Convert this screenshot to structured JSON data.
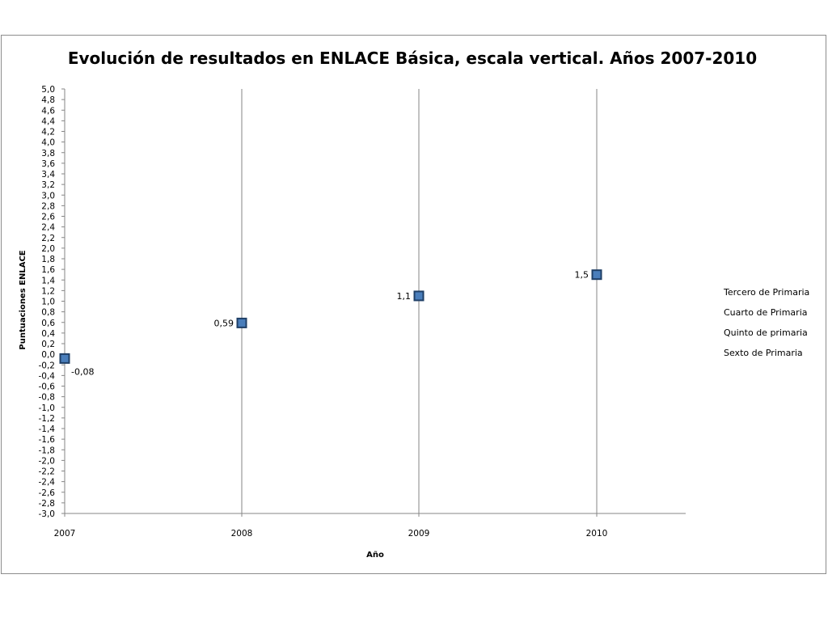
{
  "chart_data": {
    "type": "scatter",
    "title": "Evolución de resultados en ENLACE Básica, escala vertical. Años 2007-2010",
    "xlabel": "Año",
    "ylabel": "Puntuaciones ENLACE",
    "x": [
      2007,
      2008,
      2009,
      2010
    ],
    "x_tick_labels": [
      "2007",
      "2008",
      "2009",
      "2010"
    ],
    "ylim": [
      -3.0,
      5.0
    ],
    "y_step": 0.2,
    "y_decimal_separator": ",",
    "grid": "vertical major gridlines at each year",
    "points": [
      {
        "x": 2007,
        "y": -0.08,
        "label": "-0,08"
      },
      {
        "x": 2008,
        "y": 0.59,
        "label": "0,59"
      },
      {
        "x": 2009,
        "y": 1.1,
        "label": "1,1"
      },
      {
        "x": 2010,
        "y": 1.5,
        "label": "1,5"
      }
    ],
    "series_color": "#4a7ebb",
    "series_stroke": "#1f3f66",
    "legend_position": "right",
    "legend": [
      "Tercero de Primaria",
      "Cuarto de Primaria",
      "Quinto de primaria",
      "Sexto de Primaria"
    ]
  }
}
